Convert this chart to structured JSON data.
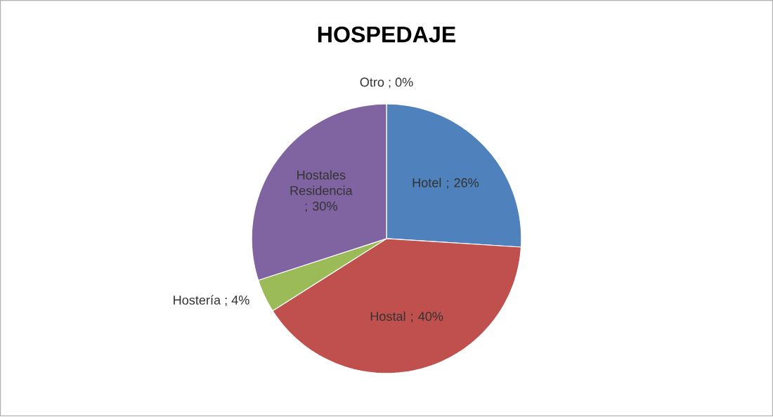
{
  "chart_data": {
    "type": "pie",
    "title": "HOSPEDAJE",
    "categories": [
      "Hotel",
      "Hostal",
      "Hostería",
      "Hostales Residencia",
      "Otro"
    ],
    "values": [
      26,
      40,
      4,
      30,
      0
    ],
    "colors": [
      "#4f81bd",
      "#c0504d",
      "#9bbb59",
      "#8064a2",
      "#4bacc6"
    ],
    "value_labels": [
      "; 26%",
      "; 40%",
      "; 4%",
      "; 30%",
      "; 0%"
    ]
  }
}
